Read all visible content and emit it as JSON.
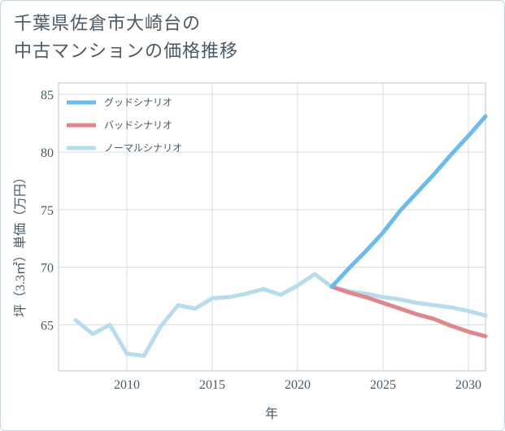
{
  "title": {
    "line1": "千葉県佐倉市大崎台の",
    "line2": "中古マンションの価格推移"
  },
  "chart_data": {
    "type": "line",
    "title": "千葉県佐倉市大崎台の中古マンションの価格推移",
    "xlabel": "年",
    "ylabel": "坪（3.3㎡）単価（万円）",
    "xlim": [
      2006,
      2031
    ],
    "ylim": [
      61,
      86
    ],
    "xticks": [
      2010,
      2015,
      2020,
      2025,
      2030
    ],
    "yticks": [
      65,
      70,
      75,
      80,
      85
    ],
    "grid": true,
    "legend_position": "top-left",
    "series": [
      {
        "name": "グッドシナリオ",
        "color": "#6bbcec",
        "x": [
          2022,
          2023,
          2024,
          2025,
          2026,
          2027,
          2028,
          2029,
          2030,
          2031
        ],
        "y": [
          68.3,
          69.9,
          71.4,
          73.0,
          74.9,
          76.5,
          78.1,
          79.8,
          81.4,
          83.1
        ]
      },
      {
        "name": "バッドシナリオ",
        "color": "#e0868e",
        "x": [
          2022,
          2023,
          2024,
          2025,
          2026,
          2027,
          2028,
          2029,
          2030,
          2031
        ],
        "y": [
          68.3,
          67.8,
          67.4,
          66.9,
          66.4,
          65.9,
          65.5,
          64.9,
          64.4,
          64.0
        ]
      },
      {
        "name": "ノーマルシナリオ",
        "color": "#b8dcec",
        "x": [
          2007,
          2008,
          2009,
          2010,
          2011,
          2012,
          2013,
          2014,
          2015,
          2016,
          2017,
          2018,
          2019,
          2020,
          2021,
          2022,
          2023,
          2024,
          2025,
          2026,
          2027,
          2028,
          2029,
          2030,
          2031
        ],
        "y": [
          65.4,
          64.2,
          65.0,
          62.5,
          62.3,
          64.9,
          66.7,
          66.4,
          67.3,
          67.4,
          67.7,
          68.1,
          67.6,
          68.4,
          69.4,
          68.3,
          67.9,
          67.7,
          67.4,
          67.2,
          66.9,
          66.7,
          66.5,
          66.2,
          65.8
        ]
      }
    ]
  }
}
